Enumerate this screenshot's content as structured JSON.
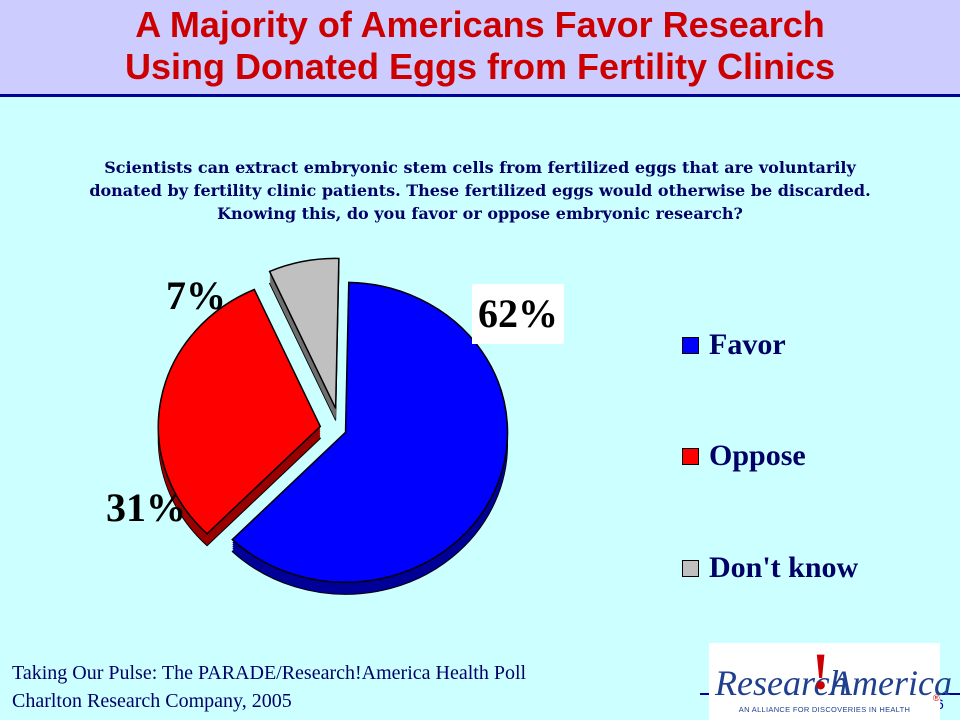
{
  "header": {
    "title_line1": "A Majority of Americans Favor Research",
    "title_line2": "Using Donated Eggs from Fertility Clinics"
  },
  "question": {
    "line1": "Scientists can extract embryonic stem cells from fertilized eggs that are voluntarily",
    "line2": "donated by fertility clinic patients. These fertilized eggs would otherwise be discarded.",
    "line3": "Knowing this, do you favor or oppose embryonic research?"
  },
  "chart_data": {
    "type": "pie",
    "title": "",
    "slices": [
      {
        "name": "Favor",
        "value": 62,
        "label": "62%",
        "color": "#0000ff",
        "side_color": "#000099"
      },
      {
        "name": "Oppose",
        "value": 31,
        "label": "31%",
        "color": "#ff0000",
        "side_color": "#990000"
      },
      {
        "name": "Don't know",
        "value": 7,
        "label": "7%",
        "color": "#c0c0c0",
        "side_color": "#6e6e6e"
      }
    ],
    "legend_position": "right",
    "exploded": true,
    "style": "3d"
  },
  "footer": {
    "source_line1": "Taking Our Pulse: The PARADE/Research!America Health Poll",
    "source_line2": "Charlton Research Company, 2005",
    "page_number": "6"
  },
  "logo": {
    "word1": "Research",
    "bang": "!",
    "word2": "America",
    "tagline": "AN ALLIANCE FOR DISCOVERIES IN HEALTH",
    "reg_mark": "®"
  },
  "colors": {
    "background": "#ccffff",
    "title_band": "#ccccff",
    "title_text": "#cc0000",
    "body_text": "#000066"
  }
}
